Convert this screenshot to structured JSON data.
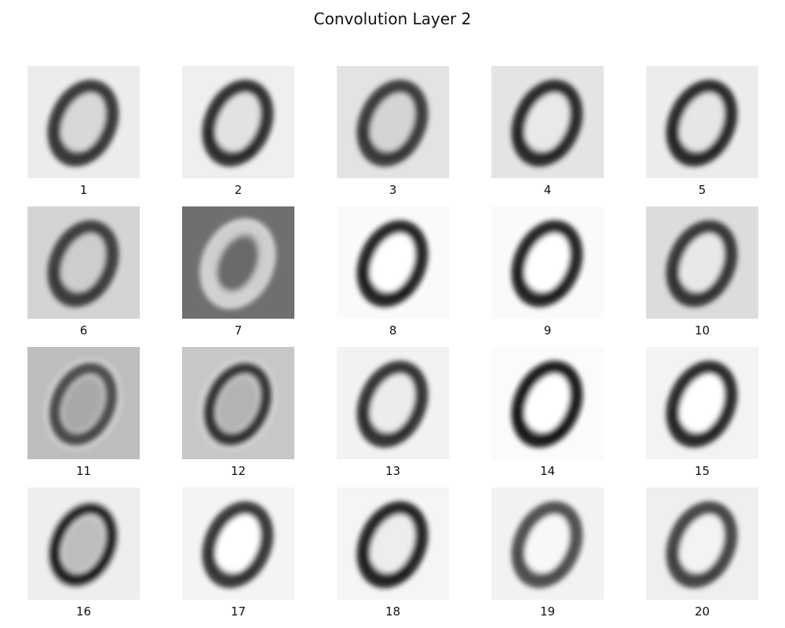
{
  "chart_data": {
    "type": "heatmap",
    "title": "Convolution Layer 2",
    "grid": {
      "rows": 4,
      "cols": 5
    },
    "colormap": "gray",
    "axes_visible": false,
    "panels": [
      {
        "label": "1",
        "background": "#ececec",
        "stroke": "#2e2e2e",
        "inner": "#d8d8d8",
        "glow": false
      },
      {
        "label": "2",
        "background": "#efefef",
        "stroke": "#232323",
        "inner": "#e2e2e2",
        "glow": false
      },
      {
        "label": "3",
        "background": "#e3e3e3",
        "stroke": "#2f2f2f",
        "inner": "#d4d4d4",
        "glow": false
      },
      {
        "label": "4",
        "background": "#e4e4e4",
        "stroke": "#1f1f1f",
        "inner": "#e9e9e9",
        "glow": false
      },
      {
        "label": "5",
        "background": "#ececec",
        "stroke": "#1d1d1d",
        "inner": "#e6e6e6",
        "glow": false
      },
      {
        "label": "6",
        "background": "#d4d4d4",
        "stroke": "#333333",
        "inner": "#cdcdcd",
        "glow": false
      },
      {
        "label": "7",
        "background": "#6f6f6f",
        "stroke": "#d6d6d6",
        "inner": "#6a6a6a",
        "glow": true
      },
      {
        "label": "8",
        "background": "#fafafa",
        "stroke": "#151515",
        "inner": "#ffffff",
        "glow": false
      },
      {
        "label": "9",
        "background": "#fafafa",
        "stroke": "#181818",
        "inner": "#ffffff",
        "glow": false
      },
      {
        "label": "10",
        "background": "#dcdcdc",
        "stroke": "#2b2b2b",
        "inner": "#e8e8e8",
        "glow": false
      },
      {
        "label": "11",
        "background": "#bdbdbd",
        "stroke": "#444444",
        "inner": "#a8a8a8",
        "glow": true
      },
      {
        "label": "12",
        "background": "#c7c7c7",
        "stroke": "#2a2a2a",
        "inner": "#b3b3b3",
        "glow": true
      },
      {
        "label": "13",
        "background": "#f2f2f2",
        "stroke": "#262626",
        "inner": "#ececec",
        "glow": false
      },
      {
        "label": "14",
        "background": "#fbfbfb",
        "stroke": "#111111",
        "inner": "#ffffff",
        "glow": false
      },
      {
        "label": "15",
        "background": "#f3f3f3",
        "stroke": "#1e1e1e",
        "inner": "#ffffff",
        "glow": false
      },
      {
        "label": "16",
        "background": "#eeeeee",
        "stroke": "#161616",
        "inner": "#bdbdbd",
        "glow": true
      },
      {
        "label": "17",
        "background": "#f4f4f4",
        "stroke": "#2a2a2a",
        "inner": "#ffffff",
        "glow": false
      },
      {
        "label": "18",
        "background": "#f5f5f5",
        "stroke": "#141414",
        "inner": "#ededed",
        "glow": false
      },
      {
        "label": "19",
        "background": "#f2f2f2",
        "stroke": "#454545",
        "inner": "#f8f8f8",
        "glow": false
      },
      {
        "label": "20",
        "background": "#efefef",
        "stroke": "#3a3a3a",
        "inner": "#f3f3f3",
        "glow": false
      }
    ]
  }
}
